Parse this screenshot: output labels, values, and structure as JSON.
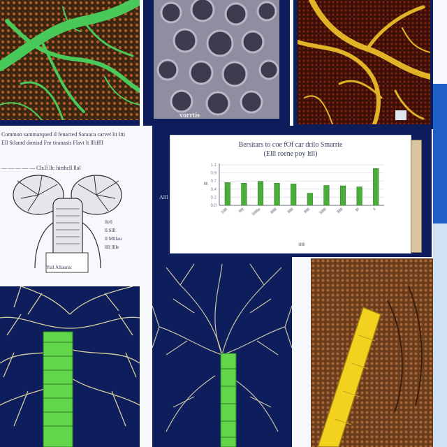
{
  "panels": {
    "top_left_caption": "",
    "top_middle_caption": "vorrtis",
    "doc_lines": [
      "Common sammarqued il fenacted Sarauca carvet lit Itti",
      "Ell Stlantd drmiad Fnr tiranasis Flavt lt llliffll",
      "— — — — — Clr.ll llc hirthcll llal"
    ],
    "diagram_labels": [
      "Yull Allaunic",
      "llell",
      "ll Slll",
      "ll Mlllau",
      "llll lllle"
    ],
    "left_margin_label": "AlIl"
  },
  "chart_data": {
    "type": "bar",
    "title": "Bersitars to coe fOf car drilo Smarrie",
    "subtitle": "(Elll roene poy ltll)",
    "ylabel": "llll",
    "xlabel": "lllllll",
    "categories": [
      "Sillll",
      "llllll",
      "Sillllla",
      "llllllll",
      "lllllll",
      "lllllll",
      "Sllllll",
      "lllllll",
      "llll",
      "ll"
    ],
    "values": [
      0.62,
      0.6,
      0.65,
      0.6,
      0.58,
      0.33,
      0.54,
      0.53,
      0.5,
      1.0
    ],
    "ylim": [
      0,
      1.1
    ],
    "grid": true,
    "colors": {
      "bar": "#4cae3a",
      "bar_dark": "#2f7f24"
    }
  },
  "colors": {
    "navy": "#0e1e5c",
    "blue_strip": "#1f5fc8",
    "green_vein": "#49c95a",
    "gold_vein": "#e0b426",
    "dark_red": "#3b0f08"
  }
}
